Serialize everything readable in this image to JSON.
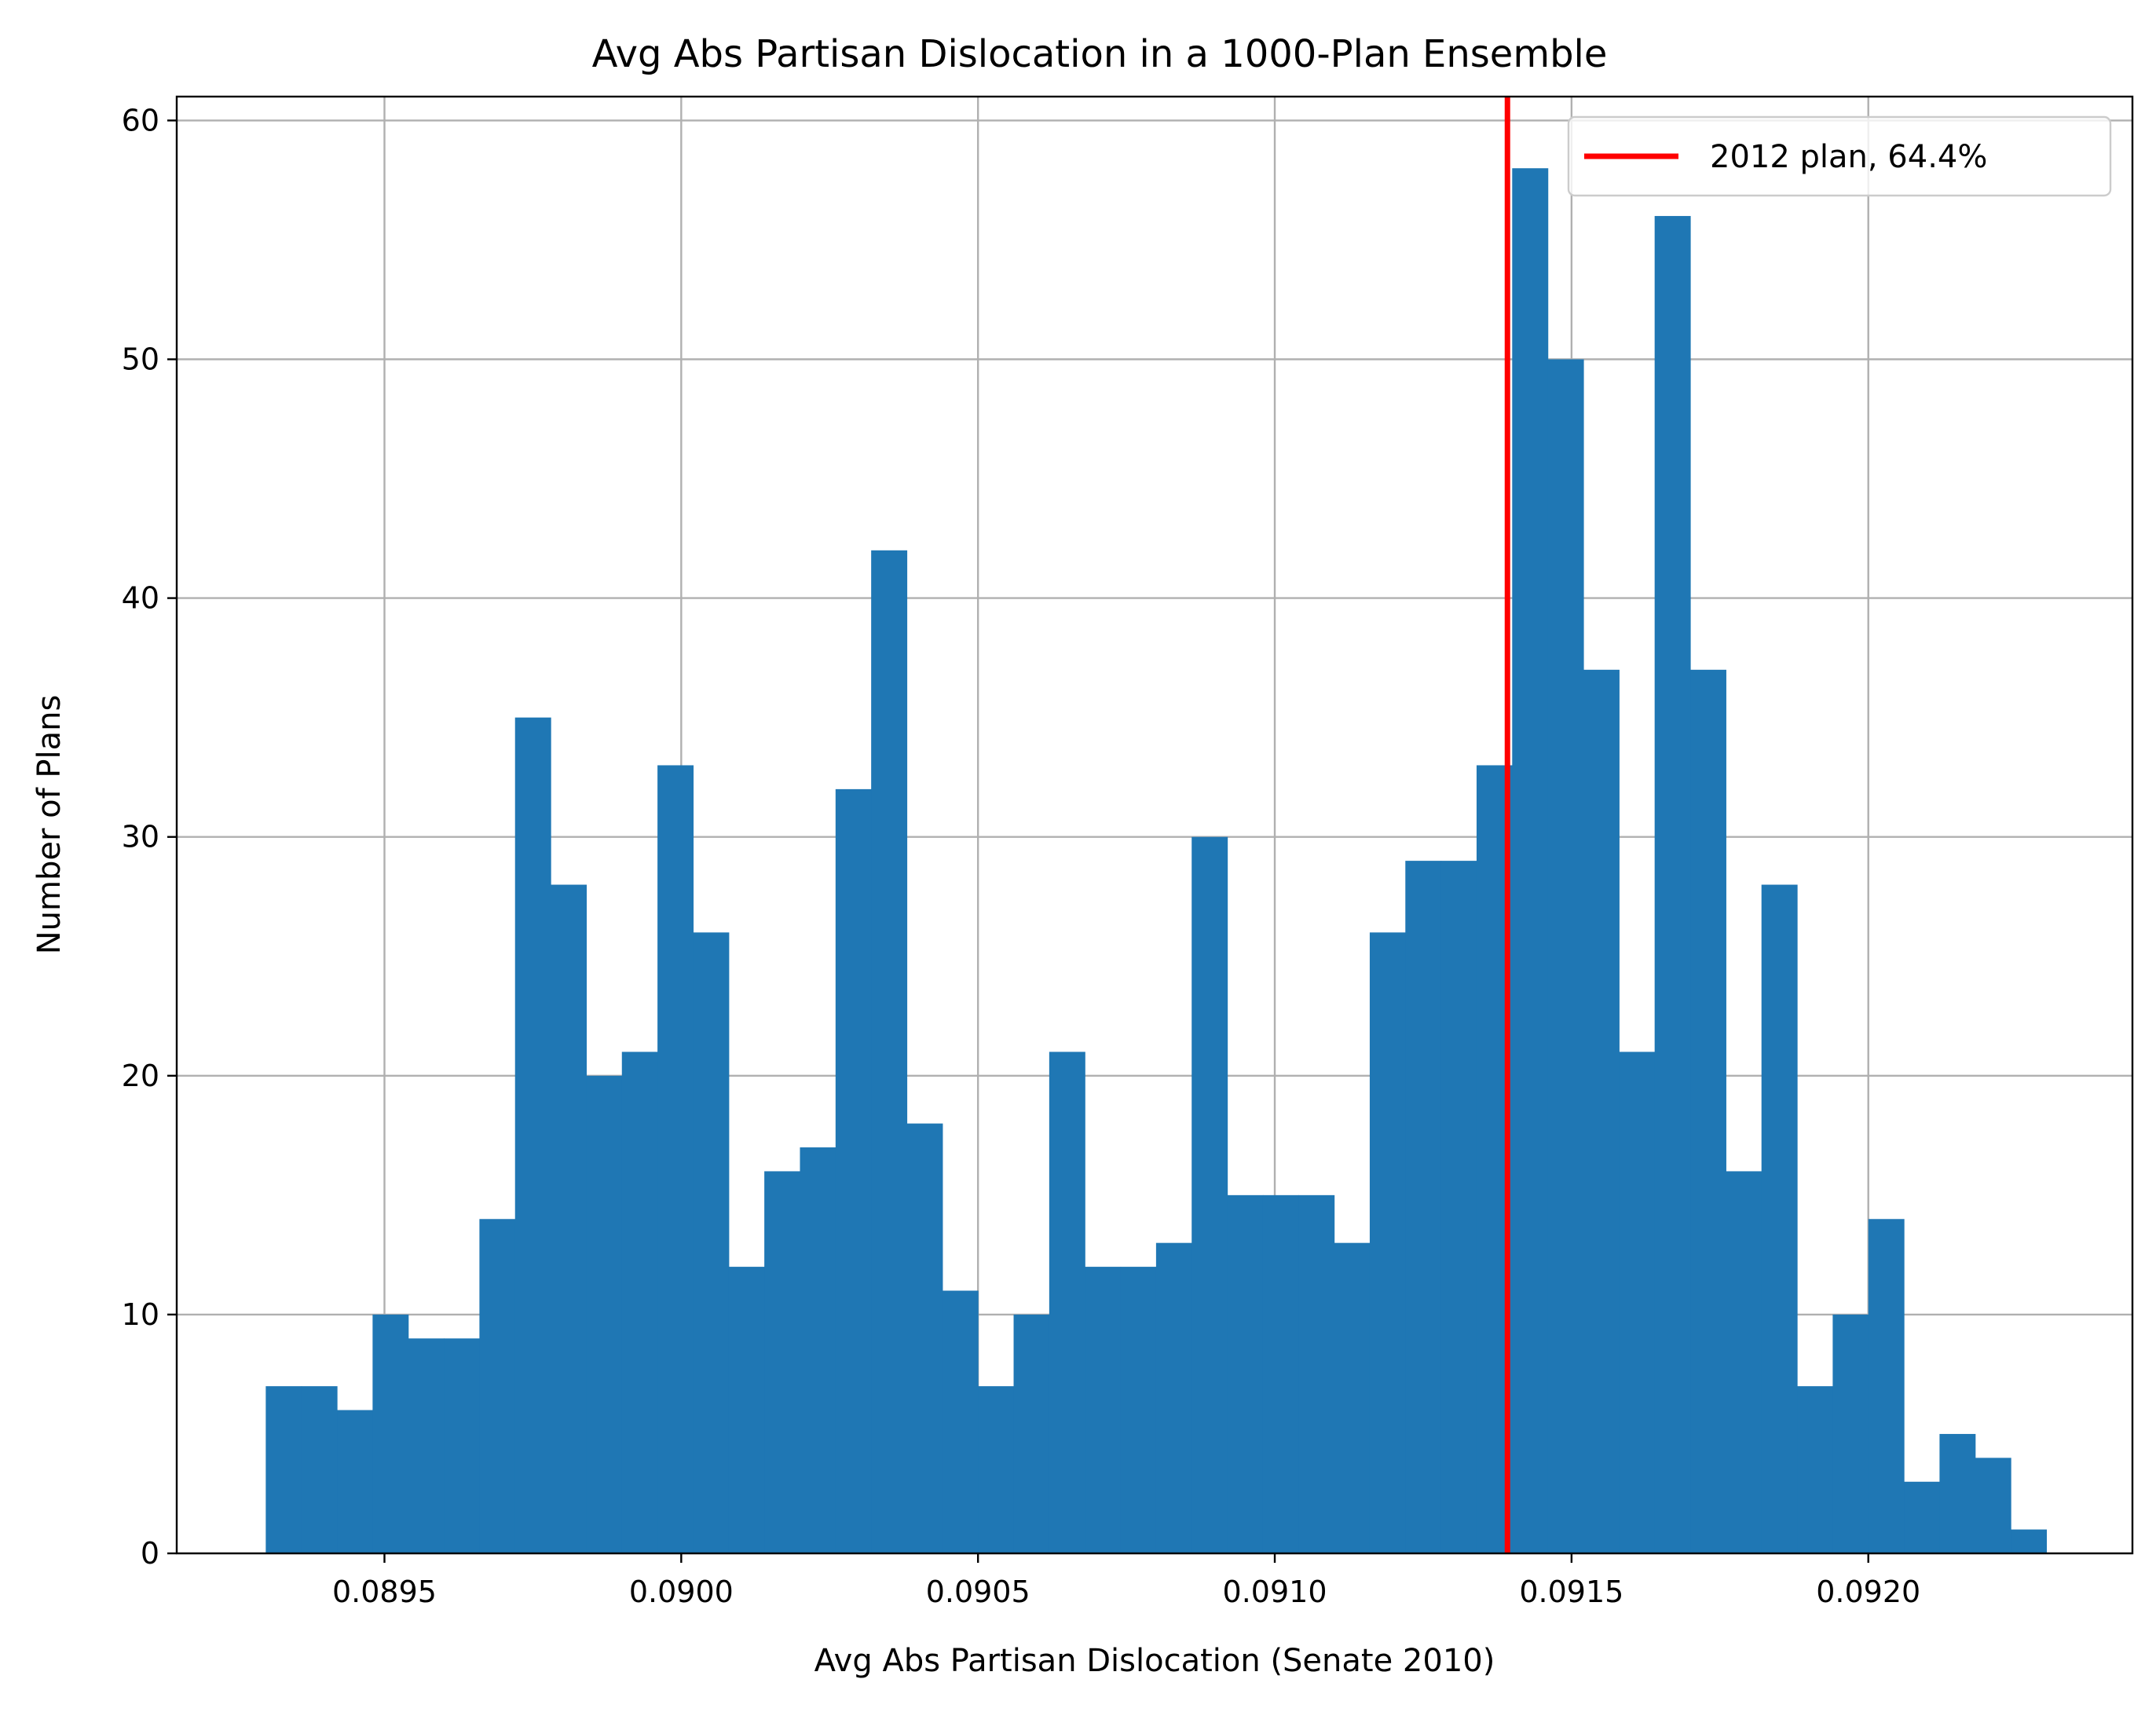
{
  "chart_data": {
    "type": "bar",
    "title": "Avg Abs Partisan Dislocation in a 1000-Plan Ensemble",
    "xlabel": "Avg Abs Partisan Dislocation (Senate 2010)",
    "ylabel": "Number of Plans",
    "bin_start": 0.0893,
    "bin_width": 6e-05,
    "counts": [
      7,
      7,
      6,
      10,
      9,
      9,
      14,
      35,
      28,
      20,
      21,
      33,
      26,
      12,
      16,
      17,
      32,
      42,
      18,
      11,
      7,
      10,
      21,
      12,
      12,
      13,
      30,
      15,
      15,
      15,
      13,
      26,
      29,
      29,
      33,
      58,
      50,
      37,
      21,
      56,
      37,
      16,
      28,
      7,
      10,
      14,
      3,
      5,
      4,
      1
    ],
    "xlim": [
      0.08915,
      0.092445
    ],
    "ylim": [
      0,
      61
    ],
    "x_ticks": [
      0.0895,
      0.09,
      0.0905,
      0.091,
      0.0915,
      0.092
    ],
    "x_tick_labels": [
      "0.0895",
      "0.0900",
      "0.0905",
      "0.0910",
      "0.0915",
      "0.0920"
    ],
    "y_ticks": [
      0,
      10,
      20,
      30,
      40,
      50,
      60
    ],
    "y_tick_labels": [
      "0",
      "10",
      "20",
      "30",
      "40",
      "50",
      "60"
    ],
    "grid": true,
    "bar_color": "#1f77b4",
    "reference_line": {
      "x": 0.091392,
      "color": "#ff0000",
      "label": "2012 plan, 64.4%"
    },
    "legend_position": "top-right"
  }
}
